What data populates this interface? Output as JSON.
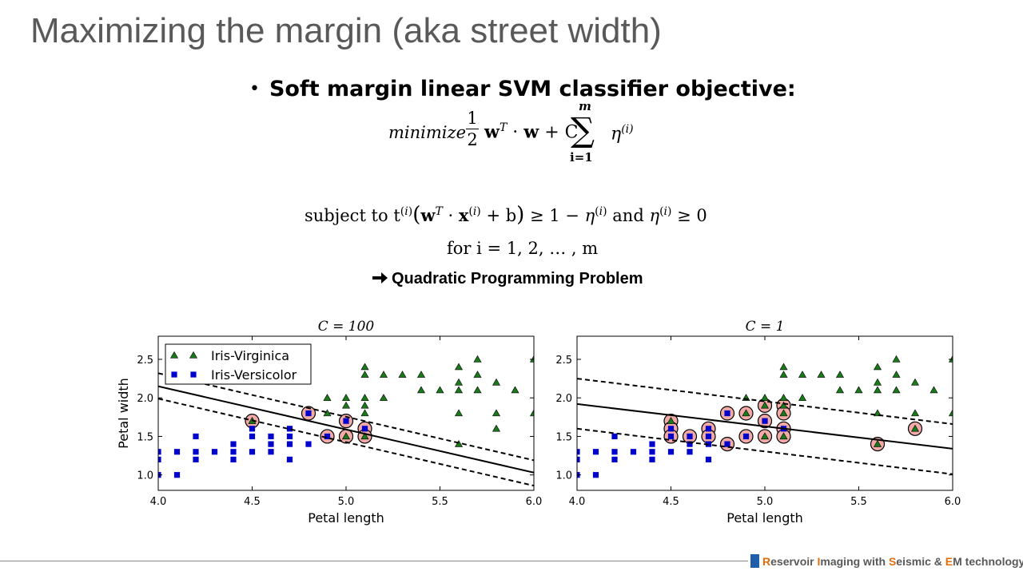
{
  "slide": {
    "title": "Maximizing the margin (aka street width)",
    "bullet": "Soft margin linear SVM classifier objective:",
    "objective": {
      "minimize": "minimize",
      "frac_num": "1",
      "frac_den": "2",
      "sum_top": "m",
      "sum_bottom": "i=1"
    },
    "constraint_prefix": "subject to",
    "constraint_and": "and",
    "range_prefix": "for",
    "range_text": "i = 1, 2, … , m",
    "conclusion": "Quadratic Programming Problem"
  },
  "footer": {
    "parts": [
      {
        "text": "R",
        "accent": true
      },
      {
        "text": "eservoir ",
        "accent": false
      },
      {
        "text": "I",
        "accent": true
      },
      {
        "text": "maging with ",
        "accent": false
      },
      {
        "text": "S",
        "accent": true
      },
      {
        "text": "eismic & ",
        "accent": false
      },
      {
        "text": "E",
        "accent": true
      },
      {
        "text": "M technology",
        "accent": false
      }
    ],
    "accent_color": "#e46c0a",
    "square_color": "#1f5faa"
  },
  "chart_data": [
    {
      "type": "scatter",
      "title": "C = 100",
      "xlabel": "Petal length",
      "ylabel": "Petal width",
      "xlim": [
        4.0,
        6.0
      ],
      "ylim": [
        0.8,
        2.8
      ],
      "xticks": [
        4.0,
        4.5,
        5.0,
        5.5,
        6.0
      ],
      "yticks": [
        1.0,
        1.5,
        2.0,
        2.5
      ],
      "legend": {
        "position": "top-left",
        "entries": [
          "Iris-Virginica",
          "Iris-Versicolor"
        ]
      },
      "series": [
        {
          "name": "Iris-Virginica",
          "marker": "triangle",
          "color": "#1a7a1a",
          "points": [
            [
              4.5,
              1.7
            ],
            [
              4.9,
              1.8
            ],
            [
              4.9,
              2.0
            ],
            [
              5.0,
              2.0
            ],
            [
              5.0,
              1.9
            ],
            [
              5.0,
              1.5
            ],
            [
              5.1,
              2.4
            ],
            [
              5.1,
              2.3
            ],
            [
              5.1,
              2.0
            ],
            [
              5.1,
              1.9
            ],
            [
              5.1,
              1.8
            ],
            [
              5.1,
              1.5
            ],
            [
              5.2,
              2.0
            ],
            [
              5.2,
              2.3
            ],
            [
              5.3,
              2.3
            ],
            [
              5.4,
              2.3
            ],
            [
              5.4,
              2.1
            ],
            [
              5.5,
              2.1
            ],
            [
              5.6,
              2.1
            ],
            [
              5.6,
              2.2
            ],
            [
              5.6,
              2.4
            ],
            [
              5.6,
              1.8
            ],
            [
              5.6,
              1.4
            ],
            [
              5.7,
              2.5
            ],
            [
              5.7,
              2.3
            ],
            [
              5.7,
              2.1
            ],
            [
              5.8,
              2.2
            ],
            [
              5.8,
              1.8
            ],
            [
              5.8,
              1.6
            ],
            [
              5.9,
              2.1
            ],
            [
              6.0,
              2.5
            ],
            [
              6.0,
              1.8
            ]
          ]
        },
        {
          "name": "Iris-Versicolor",
          "marker": "square",
          "color": "#0000cc",
          "points": [
            [
              4.0,
              1.3
            ],
            [
              4.0,
              1.2
            ],
            [
              4.0,
              1.0
            ],
            [
              4.1,
              1.3
            ],
            [
              4.1,
              1.0
            ],
            [
              4.2,
              1.5
            ],
            [
              4.2,
              1.3
            ],
            [
              4.2,
              1.2
            ],
            [
              4.3,
              1.3
            ],
            [
              4.4,
              1.4
            ],
            [
              4.4,
              1.3
            ],
            [
              4.4,
              1.2
            ],
            [
              4.5,
              1.6
            ],
            [
              4.5,
              1.5
            ],
            [
              4.5,
              1.3
            ],
            [
              4.6,
              1.5
            ],
            [
              4.6,
              1.4
            ],
            [
              4.6,
              1.3
            ],
            [
              4.7,
              1.6
            ],
            [
              4.7,
              1.5
            ],
            [
              4.7,
              1.4
            ],
            [
              4.7,
              1.2
            ],
            [
              4.8,
              1.8
            ],
            [
              4.8,
              1.4
            ],
            [
              4.9,
              1.5
            ],
            [
              5.0,
              1.7
            ],
            [
              5.1,
              1.6
            ]
          ]
        }
      ],
      "support_vectors": [
        [
          4.5,
          1.7
        ],
        [
          4.8,
          1.8
        ],
        [
          4.9,
          1.5
        ],
        [
          5.0,
          1.7
        ],
        [
          5.0,
          1.5
        ],
        [
          5.1,
          1.6
        ],
        [
          5.1,
          1.5
        ]
      ],
      "decision_boundary": [
        [
          4.0,
          2.15
        ],
        [
          6.0,
          1.03
        ]
      ],
      "margin_upper": [
        [
          4.0,
          2.32
        ],
        [
          6.0,
          1.19
        ]
      ],
      "margin_lower": [
        [
          4.0,
          1.99
        ],
        [
          6.0,
          0.86
        ]
      ]
    },
    {
      "type": "scatter",
      "title": "C = 1",
      "xlabel": "Petal length",
      "ylabel": "",
      "xlim": [
        4.0,
        6.0
      ],
      "ylim": [
        0.8,
        2.8
      ],
      "xticks": [
        4.0,
        4.5,
        5.0,
        5.5,
        6.0
      ],
      "yticks": [
        1.0,
        1.5,
        2.0,
        2.5
      ],
      "series": [
        {
          "name": "Iris-Virginica",
          "marker": "triangle",
          "color": "#1a7a1a",
          "points": [
            [
              4.5,
              1.7
            ],
            [
              4.9,
              1.8
            ],
            [
              4.9,
              2.0
            ],
            [
              5.0,
              2.0
            ],
            [
              5.0,
              1.9
            ],
            [
              5.0,
              1.5
            ],
            [
              5.1,
              2.4
            ],
            [
              5.1,
              2.3
            ],
            [
              5.1,
              2.0
            ],
            [
              5.1,
              1.9
            ],
            [
              5.1,
              1.8
            ],
            [
              5.1,
              1.5
            ],
            [
              5.2,
              2.0
            ],
            [
              5.2,
              2.3
            ],
            [
              5.3,
              2.3
            ],
            [
              5.4,
              2.3
            ],
            [
              5.4,
              2.1
            ],
            [
              5.5,
              2.1
            ],
            [
              5.6,
              2.1
            ],
            [
              5.6,
              2.2
            ],
            [
              5.6,
              2.4
            ],
            [
              5.6,
              1.8
            ],
            [
              5.6,
              1.4
            ],
            [
              5.7,
              2.5
            ],
            [
              5.7,
              2.3
            ],
            [
              5.7,
              2.1
            ],
            [
              5.8,
              2.2
            ],
            [
              5.8,
              1.8
            ],
            [
              5.8,
              1.6
            ],
            [
              5.9,
              2.1
            ],
            [
              6.0,
              2.5
            ],
            [
              6.0,
              1.8
            ]
          ]
        },
        {
          "name": "Iris-Versicolor",
          "marker": "square",
          "color": "#0000cc",
          "points": [
            [
              4.0,
              1.3
            ],
            [
              4.0,
              1.2
            ],
            [
              4.0,
              1.0
            ],
            [
              4.1,
              1.3
            ],
            [
              4.1,
              1.0
            ],
            [
              4.2,
              1.5
            ],
            [
              4.2,
              1.3
            ],
            [
              4.2,
              1.2
            ],
            [
              4.3,
              1.3
            ],
            [
              4.4,
              1.4
            ],
            [
              4.4,
              1.3
            ],
            [
              4.4,
              1.2
            ],
            [
              4.5,
              1.6
            ],
            [
              4.5,
              1.5
            ],
            [
              4.5,
              1.3
            ],
            [
              4.6,
              1.5
            ],
            [
              4.6,
              1.4
            ],
            [
              4.6,
              1.3
            ],
            [
              4.7,
              1.6
            ],
            [
              4.7,
              1.5
            ],
            [
              4.7,
              1.4
            ],
            [
              4.7,
              1.2
            ],
            [
              4.8,
              1.8
            ],
            [
              4.8,
              1.4
            ],
            [
              4.9,
              1.5
            ],
            [
              5.0,
              1.7
            ],
            [
              5.1,
              1.6
            ]
          ]
        }
      ],
      "support_vectors": [
        [
          4.5,
          1.7
        ],
        [
          4.5,
          1.6
        ],
        [
          4.5,
          1.5
        ],
        [
          4.6,
          1.5
        ],
        [
          4.7,
          1.6
        ],
        [
          4.7,
          1.5
        ],
        [
          4.8,
          1.8
        ],
        [
          4.8,
          1.4
        ],
        [
          4.9,
          1.8
        ],
        [
          4.9,
          1.5
        ],
        [
          5.0,
          1.9
        ],
        [
          5.0,
          1.7
        ],
        [
          5.0,
          1.5
        ],
        [
          5.1,
          1.9
        ],
        [
          5.1,
          1.8
        ],
        [
          5.1,
          1.6
        ],
        [
          5.1,
          1.5
        ],
        [
          5.6,
          1.4
        ],
        [
          5.8,
          1.6
        ]
      ],
      "decision_boundary": [
        [
          4.0,
          1.92
        ],
        [
          6.0,
          1.34
        ]
      ],
      "margin_upper": [
        [
          4.0,
          2.25
        ],
        [
          6.0,
          1.66
        ]
      ],
      "margin_lower": [
        [
          4.0,
          1.6
        ],
        [
          6.0,
          1.01
        ]
      ]
    }
  ]
}
